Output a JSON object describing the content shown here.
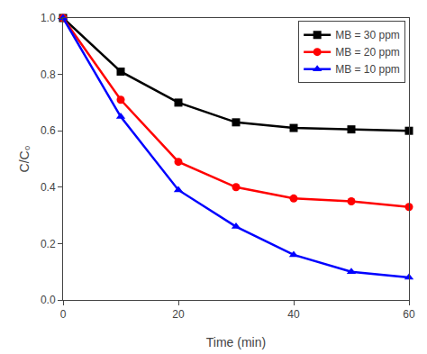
{
  "chart_data": {
    "type": "line",
    "xlabel": "Time (min)",
    "ylabel": "C/C₀",
    "x": [
      0,
      10,
      20,
      30,
      40,
      50,
      60
    ],
    "series": [
      {
        "name": "MB = 30 ppm",
        "color": "#000000",
        "marker": "square",
        "values": [
          1.0,
          0.81,
          0.7,
          0.63,
          0.61,
          0.605,
          0.6
        ]
      },
      {
        "name": "MB = 20 ppm",
        "color": "#ff0000",
        "marker": "circle",
        "values": [
          1.0,
          0.71,
          0.49,
          0.4,
          0.36,
          0.35,
          0.33
        ]
      },
      {
        "name": "MB = 10 ppm",
        "color": "#0000ff",
        "marker": "triangle-up",
        "values": [
          1.0,
          0.65,
          0.39,
          0.26,
          0.16,
          0.1,
          0.08
        ]
      }
    ],
    "xlim": [
      0,
      60
    ],
    "ylim": [
      0.0,
      1.0
    ],
    "xticks": [
      0,
      20,
      40,
      60
    ],
    "yticks": [
      {
        "value": 0.0,
        "label": "0.0"
      },
      0.2,
      0.4,
      0.6,
      0.8,
      {
        "value": 1.0,
        "label": "1.0"
      }
    ],
    "grid": false,
    "legend": "upper right"
  }
}
